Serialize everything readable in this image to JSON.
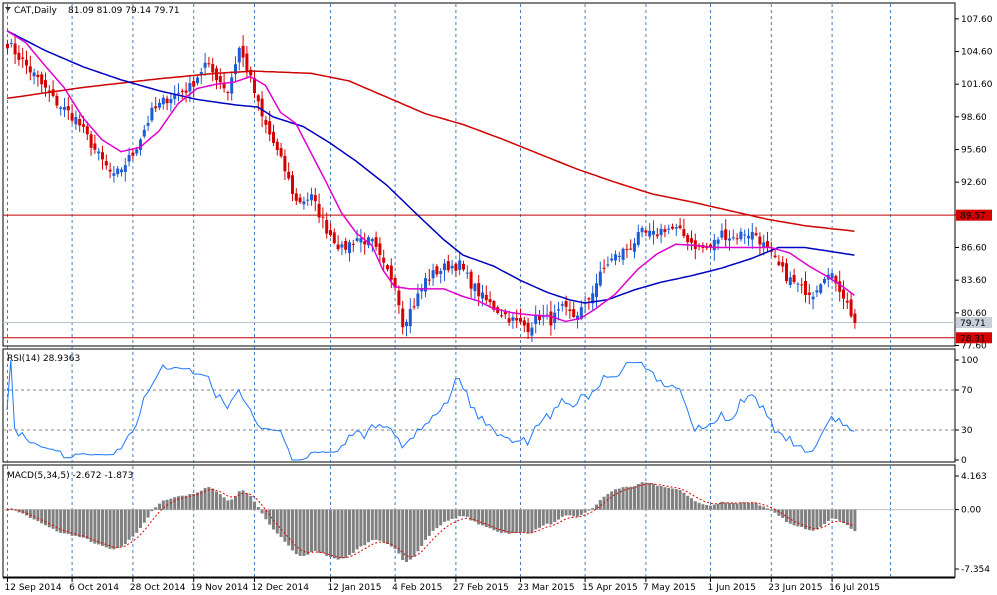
{
  "header": {
    "symbol_label": "CAT,Daily",
    "ohlc": "81.09 81.09 79.14 79.71"
  },
  "colors": {
    "bull": "#1e5bd6",
    "bear": "#d40000",
    "ma_fast": "#e000d0",
    "ma_mid": "#0000c0",
    "ma_slow": "#d00000",
    "grid": "#1a5fb4",
    "rsi": "#1e78ff",
    "macd_hist": "#808080",
    "macd_signal": "#e00000",
    "hline_red": "#c00000",
    "price_tag_bg": "#d40000",
    "price_tag_gray_bg": "#c8cfd8"
  },
  "chart_data": [
    {
      "type": "candlestick",
      "name": "price",
      "ylim": [
        77.6,
        108.0
      ],
      "y_ticks": [
        107.6,
        104.6,
        101.6,
        98.6,
        95.6,
        92.6,
        89.6,
        86.6,
        83.6,
        80.6,
        77.6
      ],
      "y_tick_labels": [
        "107.60",
        "104.60",
        "101.60",
        "98.60",
        "95.60",
        "92.60",
        "89.60",
        "86.60",
        "83.60",
        "80.60",
        "77.60"
      ],
      "price_tags": [
        {
          "label": "89.57",
          "value": 89.57,
          "style": "red"
        },
        {
          "label": "79.71",
          "value": 79.71,
          "style": "gray"
        },
        {
          "label": "78.31",
          "value": 78.31,
          "style": "red"
        }
      ],
      "hlines": [
        89.57,
        78.31
      ],
      "ref_line": 79.71,
      "close_keyframes": [
        [
          0,
          105.4
        ],
        [
          8,
          102.0
        ],
        [
          12,
          100.2
        ],
        [
          18,
          98.4
        ],
        [
          24,
          95.0
        ],
        [
          28,
          93.0
        ],
        [
          33,
          95.2
        ],
        [
          38,
          99.0
        ],
        [
          42,
          100.3
        ],
        [
          48,
          101.3
        ],
        [
          52,
          103.4
        ],
        [
          55,
          102.3
        ],
        [
          58,
          101.0
        ],
        [
          61,
          104.9
        ],
        [
          64,
          102.0
        ],
        [
          67,
          98.5
        ],
        [
          70,
          96.2
        ],
        [
          73,
          93.7
        ],
        [
          76,
          90.8
        ],
        [
          80,
          91.2
        ],
        [
          84,
          88.3
        ],
        [
          88,
          86.4
        ],
        [
          92,
          87.5
        ],
        [
          96,
          87.0
        ],
        [
          99,
          84.8
        ],
        [
          102,
          83.4
        ],
        [
          104,
          79.7
        ],
        [
          107,
          81.4
        ],
        [
          110,
          83.6
        ],
        [
          113,
          84.4
        ],
        [
          116,
          84.9
        ],
        [
          119,
          85.0
        ],
        [
          122,
          83.3
        ],
        [
          125,
          82.0
        ],
        [
          128,
          81.1
        ],
        [
          131,
          80.4
        ],
        [
          134,
          79.7
        ],
        [
          137,
          79.3
        ],
        [
          140,
          80.3
        ],
        [
          143,
          79.9
        ],
        [
          146,
          80.9
        ],
        [
          149,
          80.3
        ],
        [
          152,
          81.2
        ],
        [
          155,
          83.4
        ],
        [
          158,
          85.2
        ],
        [
          161,
          86.0
        ],
        [
          164,
          86.8
        ],
        [
          167,
          87.9
        ],
        [
          170,
          87.7
        ],
        [
          173,
          88.4
        ],
        [
          176,
          88.2
        ],
        [
          179,
          87.4
        ],
        [
          182,
          86.5
        ],
        [
          185,
          86.6
        ],
        [
          188,
          87.9
        ],
        [
          191,
          87.5
        ],
        [
          194,
          88.0
        ],
        [
          197,
          87.8
        ],
        [
          200,
          86.3
        ],
        [
          203,
          84.8
        ],
        [
          206,
          83.6
        ],
        [
          209,
          82.8
        ],
        [
          212,
          82.5
        ],
        [
          215,
          84.2
        ],
        [
          218,
          83.6
        ],
        [
          220,
          82.2
        ],
        [
          223,
          79.71
        ]
      ],
      "ma_slow_keyframes": [
        [
          0,
          100.3
        ],
        [
          20,
          101.3
        ],
        [
          40,
          102.1
        ],
        [
          55,
          102.6
        ],
        [
          65,
          102.8
        ],
        [
          80,
          102.6
        ],
        [
          90,
          101.9
        ],
        [
          100,
          100.4
        ],
        [
          110,
          98.9
        ],
        [
          120,
          97.9
        ],
        [
          130,
          96.6
        ],
        [
          140,
          95.2
        ],
        [
          150,
          93.8
        ],
        [
          160,
          92.6
        ],
        [
          170,
          91.5
        ],
        [
          180,
          90.8
        ],
        [
          190,
          90.0
        ],
        [
          200,
          89.2
        ],
        [
          210,
          88.6
        ],
        [
          223,
          88.1
        ]
      ],
      "ma_mid_keyframes": [
        [
          0,
          106.5
        ],
        [
          10,
          104.7
        ],
        [
          20,
          103.2
        ],
        [
          30,
          102.0
        ],
        [
          40,
          101.0
        ],
        [
          50,
          100.2
        ],
        [
          60,
          99.7
        ],
        [
          66,
          99.5
        ],
        [
          70,
          98.6
        ],
        [
          78,
          97.7
        ],
        [
          85,
          96.2
        ],
        [
          92,
          94.5
        ],
        [
          100,
          92.3
        ],
        [
          108,
          89.6
        ],
        [
          115,
          87.3
        ],
        [
          120,
          85.9
        ],
        [
          128,
          84.9
        ],
        [
          135,
          83.6
        ],
        [
          142,
          82.5
        ],
        [
          148,
          81.8
        ],
        [
          152,
          81.5
        ],
        [
          158,
          81.8
        ],
        [
          165,
          82.7
        ],
        [
          172,
          83.4
        ],
        [
          180,
          84.0
        ],
        [
          188,
          84.7
        ],
        [
          196,
          85.6
        ],
        [
          203,
          86.6
        ],
        [
          210,
          86.6
        ],
        [
          223,
          85.9
        ]
      ],
      "ma_fast_keyframes": [
        [
          0,
          106.5
        ],
        [
          5,
          105.4
        ],
        [
          10,
          103.3
        ],
        [
          15,
          101.3
        ],
        [
          20,
          98.5
        ],
        [
          25,
          96.5
        ],
        [
          30,
          95.4
        ],
        [
          35,
          95.8
        ],
        [
          40,
          97.3
        ],
        [
          45,
          99.8
        ],
        [
          50,
          101.2
        ],
        [
          55,
          101.6
        ],
        [
          60,
          101.8
        ],
        [
          64,
          102.3
        ],
        [
          68,
          101.5
        ],
        [
          72,
          99.0
        ],
        [
          76,
          98.0
        ],
        [
          80,
          95.3
        ],
        [
          84,
          92.6
        ],
        [
          88,
          89.8
        ],
        [
          92,
          87.9
        ],
        [
          96,
          86.8
        ],
        [
          99,
          84.5
        ],
        [
          102,
          83.0
        ],
        [
          106,
          82.8
        ],
        [
          110,
          82.8
        ],
        [
          115,
          82.8
        ],
        [
          120,
          82.1
        ],
        [
          124,
          81.7
        ],
        [
          128,
          81.0
        ],
        [
          133,
          80.6
        ],
        [
          138,
          80.4
        ],
        [
          143,
          80.3
        ],
        [
          147,
          79.8
        ],
        [
          151,
          80.1
        ],
        [
          155,
          81.0
        ],
        [
          160,
          82.3
        ],
        [
          166,
          84.6
        ],
        [
          171,
          86.0
        ],
        [
          176,
          86.9
        ],
        [
          181,
          86.8
        ],
        [
          186,
          86.6
        ],
        [
          191,
          86.6
        ],
        [
          196,
          86.6
        ],
        [
          201,
          86.6
        ],
        [
          206,
          86.1
        ],
        [
          211,
          84.9
        ],
        [
          216,
          83.9
        ],
        [
          220,
          83.0
        ],
        [
          223,
          82.2
        ]
      ]
    },
    {
      "type": "line",
      "name": "rsi",
      "label": "RSI(14) 28.9363",
      "ylim": [
        0,
        100
      ],
      "levels": [
        70,
        30
      ],
      "y_tick_labels": [
        "100",
        "70",
        "30",
        "0"
      ],
      "y_ticks": [
        100,
        70,
        30,
        0
      ]
    },
    {
      "type": "bar",
      "name": "macd",
      "label": "MACD(5,34,5) -2.672 -1.873",
      "ylim": [
        -7.354,
        4.163
      ],
      "y_ticks": [
        4.163,
        0.0,
        -7.354
      ],
      "y_tick_labels": [
        "4.163",
        "0.00",
        "-7.354"
      ]
    }
  ],
  "x_axis": {
    "labels": [
      {
        "text": "12 Sep 2014",
        "bar": 0
      },
      {
        "text": "6 Oct 2014",
        "bar": 17
      },
      {
        "text": "28 Oct 2014",
        "bar": 33
      },
      {
        "text": "19 Nov 2014",
        "bar": 49
      },
      {
        "text": "12 Dec 2014",
        "bar": 65
      },
      {
        "text": "12 Jan 2015",
        "bar": 85
      },
      {
        "text": "4 Feb 2015",
        "bar": 102
      },
      {
        "text": "27 Feb 2015",
        "bar": 118
      },
      {
        "text": "23 Mar 2015",
        "bar": 135
      },
      {
        "text": "15 Apr 2015",
        "bar": 152
      },
      {
        "text": "7 May 2015",
        "bar": 168
      },
      {
        "text": "1 Jun 2015",
        "bar": 185
      },
      {
        "text": "23 Jun 2015",
        "bar": 201
      },
      {
        "text": "16 Jul 2015",
        "bar": 217
      }
    ]
  }
}
